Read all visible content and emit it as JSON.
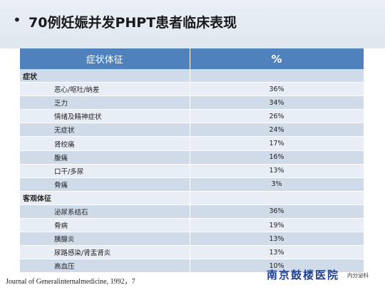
{
  "title": {
    "bullet": "•",
    "text": "70例妊娠并发PHPT患者临床表现"
  },
  "table": {
    "header": {
      "col1": "症状体征",
      "col2": "%"
    },
    "sections": [
      {
        "category": "症状",
        "rows": [
          {
            "label": "恶心/呕吐/纳差",
            "pct": "36%"
          },
          {
            "label": "乏力",
            "pct": "34%"
          },
          {
            "label": "情绪及精神症状",
            "pct": "26%"
          },
          {
            "label": "无症状",
            "pct": "24%"
          },
          {
            "label": "肾绞痛",
            "pct": "17%"
          },
          {
            "label": "腹痛",
            "pct": "16%"
          },
          {
            "label": "口干/多尿",
            "pct": "13%"
          },
          {
            "label": "骨痛",
            "pct": "3%"
          }
        ]
      },
      {
        "category": "客观体征",
        "rows": [
          {
            "label": "泌尿系结石",
            "pct": "36%"
          },
          {
            "label": "骨病",
            "pct": "19%"
          },
          {
            "label": "胰腺炎",
            "pct": "13%"
          },
          {
            "label": "尿路感染/肾盂肾炎",
            "pct": "13%"
          },
          {
            "label": "高血压",
            "pct": "10%"
          }
        ]
      }
    ]
  },
  "footer": {
    "citation": "Journal of Generalinternalmedicine, 1992，7",
    "hospital": "南京鼓楼医院",
    "department": "内分泌科"
  },
  "colors": {
    "header_bg": "#4f81bd",
    "band_dark": "#d0dbea",
    "band_light": "#e9eef6",
    "logo": "#1f3f8f"
  }
}
